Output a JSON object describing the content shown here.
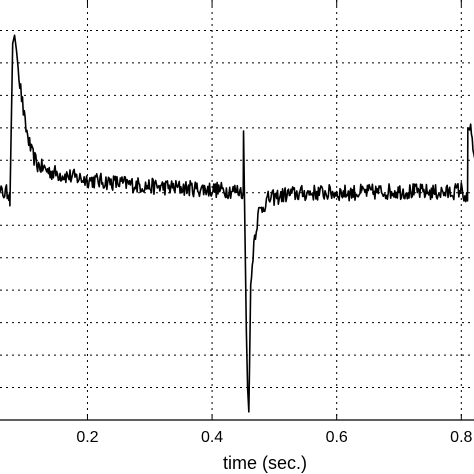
{
  "chart_data": {
    "type": "line",
    "title": "",
    "xlabel": "time (sec.)",
    "ylabel": "",
    "xlim": [
      0.05,
      0.83
    ],
    "ylim": [
      -1.4,
      1.2
    ],
    "grid": true,
    "grid_style": "dotted",
    "x_ticks": [
      0.2,
      0.4,
      0.6,
      0.8
    ],
    "x_tick_labels": [
      "0.2",
      "0.4",
      "0.6",
      "0.8"
    ],
    "y_gridlines": [
      -1.2,
      -1.0,
      -0.8,
      -0.6,
      -0.4,
      -0.2,
      0.0,
      0.2,
      0.4,
      0.6,
      0.8,
      1.0
    ],
    "colors": {
      "line": "#000000",
      "axes": "#000000",
      "grid": "#000000",
      "background": "#ffffff"
    },
    "series": [
      {
        "x": [
          0.05,
          0.06,
          0.07,
          0.075,
          0.0755,
          0.08,
          0.083,
          0.086,
          0.09,
          0.1,
          0.11,
          0.12,
          0.14,
          0.16,
          0.2,
          0.25,
          0.3,
          0.35,
          0.4,
          0.45,
          0.4505,
          0.455,
          0.457,
          0.459,
          0.46,
          0.462,
          0.467,
          0.475,
          0.49,
          0.52,
          0.56,
          0.62,
          0.7,
          0.78,
          0.8,
          0.81,
          0.8105,
          0.815,
          0.82,
          0.825,
          0.83
        ],
        "values": [
          0.0,
          0.0,
          0.0,
          0.0,
          -0.08,
          0.92,
          0.97,
          0.88,
          0.72,
          0.42,
          0.25,
          0.17,
          0.13,
          0.11,
          0.08,
          0.06,
          0.04,
          0.03,
          0.02,
          0.01,
          0.38,
          -0.85,
          -1.2,
          -1.35,
          -1.1,
          -0.6,
          -0.3,
          -0.12,
          -0.04,
          -0.01,
          0.0,
          0.0,
          0.01,
          0.0,
          0.02,
          -0.05,
          0.4,
          0.38,
          0.25,
          0.1,
          0.05
        ],
        "noise": 0.05
      }
    ]
  }
}
